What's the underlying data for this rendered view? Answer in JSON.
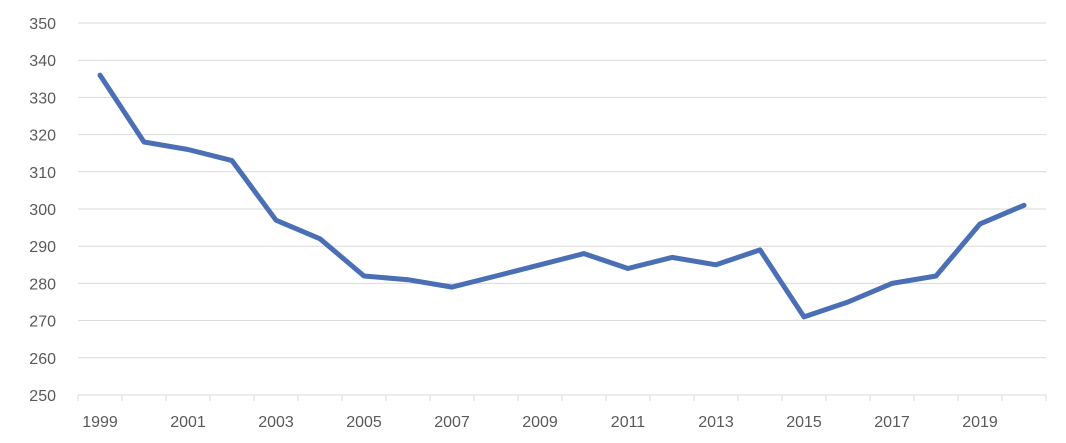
{
  "chart_data": {
    "type": "line",
    "title": "",
    "xlabel": "",
    "ylabel": "",
    "x": [
      1999,
      2000,
      2001,
      2002,
      2003,
      2004,
      2005,
      2006,
      2007,
      2008,
      2009,
      2010,
      2011,
      2012,
      2013,
      2014,
      2015,
      2016,
      2017,
      2018,
      2019,
      2020
    ],
    "x_tick_labels": [
      "1999",
      "2001",
      "2003",
      "2005",
      "2007",
      "2009",
      "2011",
      "2013",
      "2015",
      "2017",
      "2019"
    ],
    "y_ticks": [
      250,
      260,
      270,
      280,
      290,
      300,
      310,
      320,
      330,
      340,
      350
    ],
    "ylim": [
      250,
      350
    ],
    "grid": true,
    "series": [
      {
        "values": [
          336,
          318,
          316,
          313,
          297,
          292,
          282,
          281,
          279,
          282,
          285,
          288,
          284,
          287,
          285,
          289,
          271,
          275,
          280,
          282,
          296,
          301
        ],
        "color": "#4a6fb5"
      }
    ]
  }
}
